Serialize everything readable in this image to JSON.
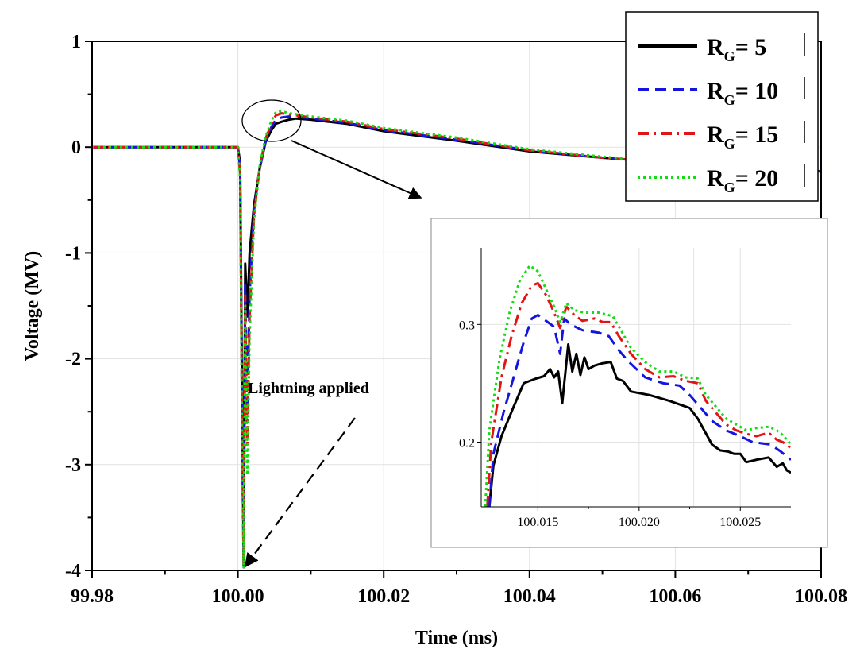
{
  "chart_data": [
    {
      "type": "line",
      "title": "",
      "xlabel": "Time (ms)",
      "ylabel": "Voltage (MV)",
      "xlim": [
        99.98,
        100.08
      ],
      "ylim": [
        -4,
        1
      ],
      "xticks": [
        99.98,
        100.0,
        100.02,
        100.04,
        100.06,
        100.08
      ],
      "xtick_labels": [
        "99.98",
        "100.00",
        "100.02",
        "100.04",
        "100.06",
        "100.08"
      ],
      "yticks": [
        -4,
        -3,
        -2,
        -1,
        0,
        1
      ],
      "ytick_labels": [
        "-4",
        "-3",
        "-2",
        "-1",
        "0",
        "1"
      ],
      "grid": true,
      "legend_position": "top-right",
      "annotation": "Lightning applied",
      "series": [
        {
          "name": "R_G = 5",
          "label_main": "R",
          "label_sub": "G",
          "label_rest": "= 5",
          "color": "#000000",
          "dash": "solid",
          "points": [
            [
              99.98,
              0
            ],
            [
              100.0,
              0
            ],
            [
              100.0003,
              -0.15
            ],
            [
              100.0006,
              -2.5
            ],
            [
              100.0008,
              -3.95
            ],
            [
              100.001,
              -1.1
            ],
            [
              100.0013,
              -1.6
            ],
            [
              100.0016,
              -1.0
            ],
            [
              100.0022,
              -0.55
            ],
            [
              100.003,
              -0.2
            ],
            [
              100.0038,
              0.05
            ],
            [
              100.0046,
              0.16
            ],
            [
              100.0052,
              0.22
            ],
            [
              100.006,
              0.24
            ],
            [
              100.007,
              0.26
            ],
            [
              100.008,
              0.27
            ],
            [
              100.01,
              0.26
            ],
            [
              100.015,
              0.22
            ],
            [
              100.02,
              0.15
            ],
            [
              100.03,
              0.06
            ],
            [
              100.04,
              -0.04
            ],
            [
              100.05,
              -0.1
            ],
            [
              100.06,
              -0.15
            ],
            [
              100.07,
              -0.19
            ],
            [
              100.08,
              -0.23
            ]
          ]
        },
        {
          "name": "R_G = 10",
          "label_main": "R",
          "label_sub": "G",
          "label_rest": "= 10",
          "color": "#1515e0",
          "dash": "dash",
          "points": [
            [
              99.98,
              0
            ],
            [
              100.0,
              0
            ],
            [
              100.0003,
              -0.2
            ],
            [
              100.0006,
              -2.8
            ],
            [
              100.0008,
              -3.97
            ],
            [
              100.001,
              -1.3
            ],
            [
              100.0013,
              -2.5
            ],
            [
              100.0016,
              -1.4
            ],
            [
              100.0022,
              -0.6
            ],
            [
              100.003,
              -0.2
            ],
            [
              100.0038,
              0.06
            ],
            [
              100.0046,
              0.19
            ],
            [
              100.0052,
              0.26
            ],
            [
              100.006,
              0.28
            ],
            [
              100.007,
              0.29
            ],
            [
              100.008,
              0.29
            ],
            [
              100.01,
              0.27
            ],
            [
              100.015,
              0.23
            ],
            [
              100.02,
              0.16
            ],
            [
              100.03,
              0.07
            ],
            [
              100.04,
              -0.03
            ],
            [
              100.05,
              -0.1
            ],
            [
              100.06,
              -0.15
            ],
            [
              100.07,
              -0.19
            ],
            [
              100.08,
              -0.23
            ]
          ]
        },
        {
          "name": "R_G = 15",
          "label_main": "R",
          "label_sub": "G",
          "label_rest": "= 15",
          "color": "#e01515",
          "dash": "dashdot",
          "points": [
            [
              99.98,
              0
            ],
            [
              100.0,
              0
            ],
            [
              100.0003,
              -0.25
            ],
            [
              100.0006,
              -2.9
            ],
            [
              100.0008,
              -3.96
            ],
            [
              100.001,
              -1.4
            ],
            [
              100.0013,
              -2.8
            ],
            [
              100.0016,
              -1.6
            ],
            [
              100.0022,
              -0.65
            ],
            [
              100.003,
              -0.18
            ],
            [
              100.0038,
              0.08
            ],
            [
              100.0046,
              0.22
            ],
            [
              100.0052,
              0.3
            ],
            [
              100.006,
              0.32
            ],
            [
              100.007,
              0.31
            ],
            [
              100.008,
              0.3
            ],
            [
              100.01,
              0.28
            ],
            [
              100.015,
              0.24
            ],
            [
              100.02,
              0.17
            ],
            [
              100.03,
              0.08
            ],
            [
              100.04,
              -0.03
            ],
            [
              100.05,
              -0.1
            ],
            [
              100.06,
              -0.15
            ],
            [
              100.07,
              -0.19
            ],
            [
              100.08,
              -0.23
            ]
          ]
        },
        {
          "name": "R_G = 20",
          "label_main": "R",
          "label_sub": "G",
          "label_rest": "= 20",
          "color": "#11dd11",
          "dash": "dot",
          "points": [
            [
              99.98,
              0
            ],
            [
              100.0,
              0
            ],
            [
              100.0003,
              -0.3
            ],
            [
              100.0006,
              -3.0
            ],
            [
              100.0008,
              -3.98
            ],
            [
              100.001,
              -1.5
            ],
            [
              100.0013,
              -3.1
            ],
            [
              100.0016,
              -1.8
            ],
            [
              100.0022,
              -0.7
            ],
            [
              100.003,
              -0.17
            ],
            [
              100.0038,
              0.1
            ],
            [
              100.0046,
              0.25
            ],
            [
              100.0052,
              0.33
            ],
            [
              100.006,
              0.34
            ],
            [
              100.007,
              0.32
            ],
            [
              100.008,
              0.31
            ],
            [
              100.01,
              0.29
            ],
            [
              100.015,
              0.25
            ],
            [
              100.02,
              0.18
            ],
            [
              100.03,
              0.09
            ],
            [
              100.04,
              -0.02
            ],
            [
              100.05,
              -0.09
            ],
            [
              100.06,
              -0.15
            ],
            [
              100.07,
              -0.19
            ],
            [
              100.08,
              -0.23
            ]
          ]
        }
      ]
    },
    {
      "type": "line",
      "title": "",
      "xlabel": "",
      "ylabel": "",
      "xlim": [
        100.0122,
        100.0275
      ],
      "ylim": [
        0.145,
        0.365
      ],
      "xticks": [
        100.015,
        100.02,
        100.025
      ],
      "xtick_labels": [
        "100.015",
        "100.020",
        "100.025"
      ],
      "yticks": [
        0.2,
        0.3
      ],
      "ytick_labels": [
        "0.2",
        "0.3"
      ],
      "grid": true,
      "series": [
        {
          "name": "R_G = 5",
          "color": "#000000",
          "dash": "solid",
          "points": [
            [
              100.0126,
              0.145
            ],
            [
              100.0128,
              0.18
            ],
            [
              100.0132,
              0.205
            ],
            [
              100.0138,
              0.23
            ],
            [
              100.0143,
              0.25
            ],
            [
              100.0149,
              0.254
            ],
            [
              100.0153,
              0.256
            ],
            [
              100.0156,
              0.262
            ],
            [
              100.0158,
              0.255
            ],
            [
              100.016,
              0.26
            ],
            [
              100.0162,
              0.233
            ],
            [
              100.0165,
              0.283
            ],
            [
              100.0167,
              0.26
            ],
            [
              100.0169,
              0.275
            ],
            [
              100.0171,
              0.257
            ],
            [
              100.0173,
              0.272
            ],
            [
              100.0175,
              0.262
            ],
            [
              100.0178,
              0.265
            ],
            [
              100.0182,
              0.267
            ],
            [
              100.0186,
              0.268
            ],
            [
              100.0189,
              0.254
            ],
            [
              100.0192,
              0.252
            ],
            [
              100.0196,
              0.243
            ],
            [
              100.0205,
              0.24
            ],
            [
              100.0215,
              0.235
            ],
            [
              100.0225,
              0.229
            ],
            [
              100.0229,
              0.22
            ],
            [
              100.0236,
              0.198
            ],
            [
              100.024,
              0.193
            ],
            [
              100.0244,
              0.192
            ],
            [
              100.0247,
              0.19
            ],
            [
              100.025,
              0.19
            ],
            [
              100.0253,
              0.183
            ],
            [
              100.0258,
              0.185
            ],
            [
              100.0264,
              0.187
            ],
            [
              100.0268,
              0.179
            ],
            [
              100.0271,
              0.182
            ],
            [
              100.0273,
              0.176
            ],
            [
              100.0275,
              0.174
            ]
          ]
        },
        {
          "name": "R_G = 10",
          "color": "#1515e0",
          "dash": "dash",
          "points": [
            [
              100.0126,
              0.145
            ],
            [
              100.0128,
              0.19
            ],
            [
              100.0133,
              0.225
            ],
            [
              100.0138,
              0.255
            ],
            [
              100.0143,
              0.285
            ],
            [
              100.0147,
              0.305
            ],
            [
              100.015,
              0.308
            ],
            [
              100.0154,
              0.303
            ],
            [
              100.0158,
              0.298
            ],
            [
              100.0161,
              0.275
            ],
            [
              100.0163,
              0.305
            ],
            [
              100.0166,
              0.3
            ],
            [
              100.0172,
              0.295
            ],
            [
              100.018,
              0.293
            ],
            [
              100.0185,
              0.29
            ],
            [
              100.019,
              0.278
            ],
            [
              100.0195,
              0.268
            ],
            [
              100.0203,
              0.255
            ],
            [
              100.0212,
              0.25
            ],
            [
              100.022,
              0.248
            ],
            [
              100.0225,
              0.24
            ],
            [
              100.023,
              0.23
            ],
            [
              100.0236,
              0.218
            ],
            [
              100.0243,
              0.21
            ],
            [
              100.025,
              0.205
            ],
            [
              100.0256,
              0.2
            ],
            [
              100.0265,
              0.198
            ],
            [
              100.027,
              0.192
            ],
            [
              100.0275,
              0.185
            ]
          ]
        },
        {
          "name": "R_G = 15",
          "color": "#e01515",
          "dash": "dashdot",
          "points": [
            [
              100.0125,
              0.145
            ],
            [
              100.0127,
              0.2
            ],
            [
              100.0132,
              0.255
            ],
            [
              100.0137,
              0.29
            ],
            [
              100.0142,
              0.318
            ],
            [
              100.0147,
              0.333
            ],
            [
              100.015,
              0.335
            ],
            [
              100.0154,
              0.325
            ],
            [
              100.0158,
              0.31
            ],
            [
              100.0161,
              0.297
            ],
            [
              100.0164,
              0.315
            ],
            [
              100.0168,
              0.308
            ],
            [
              100.0172,
              0.303
            ],
            [
              100.0178,
              0.305
            ],
            [
              100.0182,
              0.302
            ],
            [
              100.0186,
              0.302
            ],
            [
              100.019,
              0.29
            ],
            [
              100.0196,
              0.275
            ],
            [
              100.0203,
              0.262
            ],
            [
              100.021,
              0.255
            ],
            [
              100.0217,
              0.256
            ],
            [
              100.0223,
              0.252
            ],
            [
              100.0229,
              0.25
            ],
            [
              100.0233,
              0.235
            ],
            [
              100.0238,
              0.225
            ],
            [
              100.0243,
              0.215
            ],
            [
              100.0248,
              0.21
            ],
            [
              100.0253,
              0.207
            ],
            [
              100.0258,
              0.205
            ],
            [
              100.0264,
              0.208
            ],
            [
              100.0268,
              0.202
            ],
            [
              100.0271,
              0.2
            ],
            [
              100.0275,
              0.195
            ]
          ]
        },
        {
          "name": "R_G = 20",
          "color": "#11dd11",
          "dash": "dot",
          "points": [
            [
              100.0124,
              0.145
            ],
            [
              100.0126,
              0.21
            ],
            [
              100.0131,
              0.27
            ],
            [
              100.0136,
              0.31
            ],
            [
              100.0141,
              0.337
            ],
            [
              100.0146,
              0.35
            ],
            [
              100.015,
              0.345
            ],
            [
              100.0154,
              0.33
            ],
            [
              100.0158,
              0.315
            ],
            [
              100.0161,
              0.302
            ],
            [
              100.0164,
              0.318
            ],
            [
              100.0168,
              0.312
            ],
            [
              100.0173,
              0.31
            ],
            [
              100.018,
              0.31
            ],
            [
              100.0187,
              0.307
            ],
            [
              100.0191,
              0.295
            ],
            [
              100.0196,
              0.28
            ],
            [
              100.0203,
              0.268
            ],
            [
              100.021,
              0.26
            ],
            [
              100.0217,
              0.26
            ],
            [
              100.0223,
              0.255
            ],
            [
              100.0229,
              0.254
            ],
            [
              100.0233,
              0.24
            ],
            [
              100.0238,
              0.23
            ],
            [
              100.0243,
              0.22
            ],
            [
              100.0248,
              0.215
            ],
            [
              100.0253,
              0.21
            ],
            [
              100.0258,
              0.212
            ],
            [
              100.0264,
              0.213
            ],
            [
              100.0268,
              0.21
            ],
            [
              100.0271,
              0.206
            ],
            [
              100.0275,
              0.198
            ]
          ]
        }
      ]
    }
  ]
}
